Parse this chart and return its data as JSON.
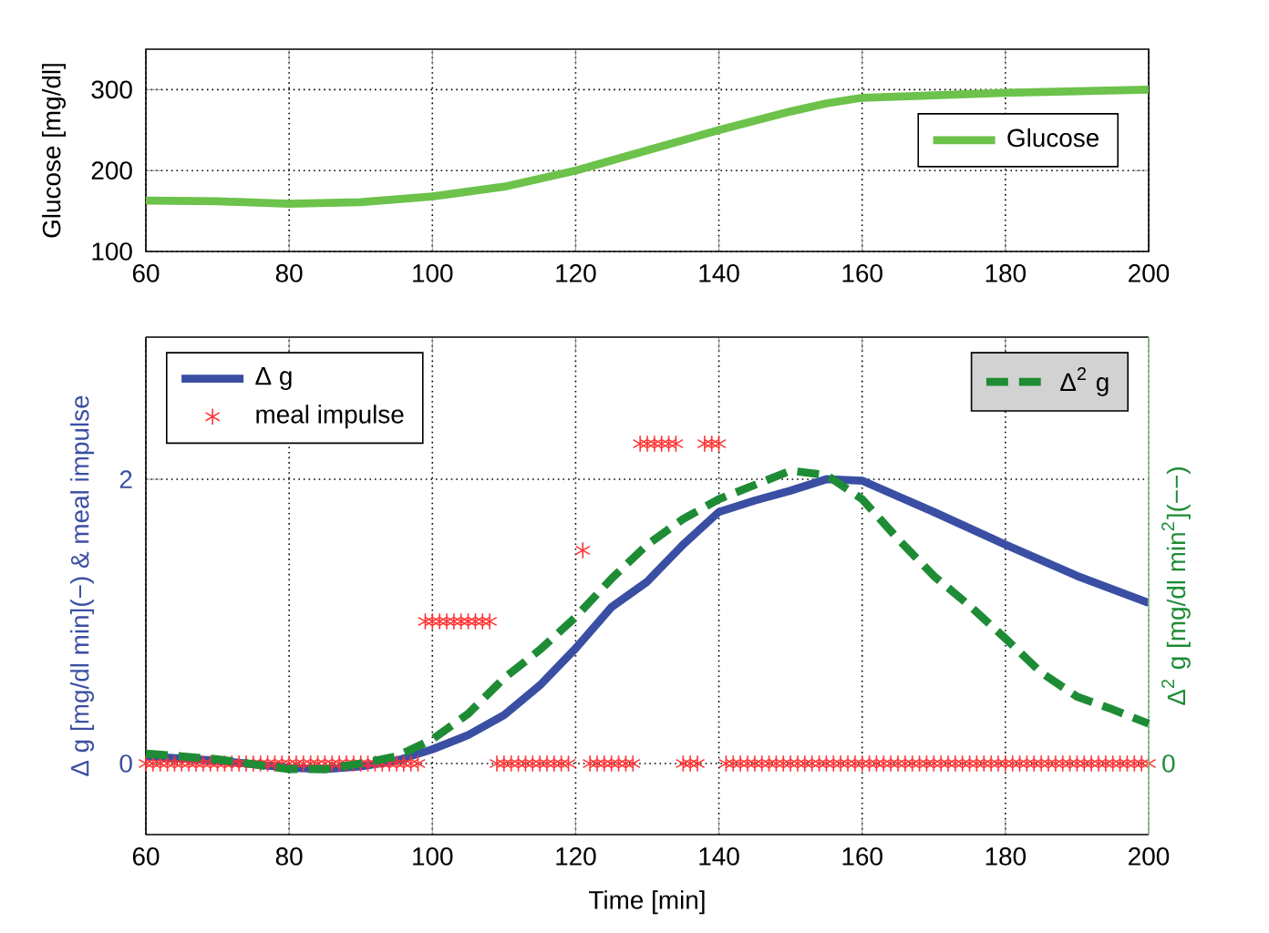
{
  "chart_data": [
    {
      "type": "line",
      "ylabel": "Glucose [mg/dl]",
      "xlim": [
        60,
        200
      ],
      "ylim": [
        100,
        350
      ],
      "xticks": [
        60,
        80,
        100,
        120,
        140,
        160,
        180,
        200
      ],
      "yticks": [
        100,
        200,
        300
      ],
      "grid": true,
      "legend": "right",
      "x": [
        60,
        70,
        80,
        90,
        100,
        110,
        120,
        130,
        140,
        150,
        155,
        160,
        170,
        180,
        190,
        200
      ],
      "series": [
        {
          "name": "Glucose",
          "color": "#6cc24a",
          "values": [
            163,
            162,
            159,
            161,
            168,
            180,
            200,
            225,
            250,
            273,
            283,
            290,
            293,
            296,
            298,
            300
          ]
        }
      ]
    },
    {
      "type": "line",
      "xlabel": "Time [min]",
      "ylabel": "Δ g [mg/dl min](−) & meal impulse",
      "y2label": "Δ$^{2}$ g [mg/dl min$^{2}$](−−)",
      "xlim": [
        60,
        200
      ],
      "ylim": [
        -0.5,
        3
      ],
      "xticks": [
        60,
        80,
        100,
        120,
        140,
        160,
        180,
        200
      ],
      "yticks": [
        0,
        2
      ],
      "annotations": [
        "0"
      ],
      "grid": true,
      "legend": "top left",
      "series": [
        {
          "name": "Δ g",
          "color": "#3a4fa3",
          "x": [
            60,
            70,
            80,
            85,
            90,
            95,
            100,
            105,
            110,
            115,
            120,
            125,
            130,
            135,
            140,
            145,
            150,
            155,
            160,
            165,
            170,
            180,
            190,
            200
          ],
          "values": [
            0.05,
            0.02,
            -0.03,
            -0.04,
            -0.02,
            0.02,
            0.1,
            0.2,
            0.34,
            0.55,
            0.81,
            1.1,
            1.28,
            1.54,
            1.77,
            1.85,
            1.92,
            2.0,
            1.99,
            1.88,
            1.77,
            1.54,
            1.32,
            1.13
          ]
        },
        {
          "name": "meal impulse",
          "type": "scatter",
          "marker": "cross",
          "color": "#ff3333",
          "x": [
            60,
            61,
            62,
            63,
            64,
            65,
            66,
            67,
            68,
            69,
            70,
            71,
            72,
            73,
            74,
            75,
            76,
            77,
            78,
            79,
            80,
            81,
            82,
            83,
            84,
            85,
            86,
            87,
            88,
            89,
            90,
            91,
            92,
            93,
            94,
            95,
            96,
            97,
            98,
            99,
            100,
            101,
            102,
            103,
            104,
            105,
            106,
            107,
            108,
            109,
            110,
            111,
            112,
            113,
            114,
            115,
            116,
            117,
            118,
            119,
            121,
            122,
            123,
            124,
            125,
            126,
            127,
            128,
            129,
            130,
            131,
            132,
            133,
            134,
            135,
            136,
            137,
            138,
            139,
            140,
            141,
            142,
            143,
            144,
            145,
            146,
            147,
            148,
            149,
            150,
            151,
            152,
            153,
            154,
            155,
            156,
            157,
            158,
            159,
            160,
            161,
            162,
            163,
            164,
            165,
            166,
            167,
            168,
            169,
            170,
            171,
            172,
            173,
            174,
            175,
            176,
            177,
            178,
            179,
            180,
            181,
            182,
            183,
            184,
            185,
            186,
            187,
            188,
            189,
            190,
            191,
            192,
            193,
            194,
            195,
            196,
            197,
            198,
            199,
            200
          ],
          "values": [
            0,
            0,
            0,
            0,
            0,
            0,
            0,
            0,
            0,
            0,
            0,
            0,
            0,
            0,
            0,
            0,
            0,
            0,
            0,
            0,
            0,
            0,
            0,
            0,
            0,
            0,
            0,
            0,
            0,
            0,
            0,
            0,
            0,
            0,
            0,
            0,
            0,
            0,
            0,
            1,
            1,
            1,
            1,
            1,
            1,
            1,
            1,
            1,
            1,
            0,
            0,
            0,
            0,
            0,
            0,
            0,
            0,
            0,
            0,
            0,
            1.5,
            0,
            0,
            0,
            0,
            0,
            0,
            0,
            2.25,
            2.25,
            2.25,
            2.25,
            2.25,
            2.25,
            0,
            0,
            0,
            2.25,
            2.25,
            2.25,
            0,
            0,
            0,
            0,
            0,
            0,
            0,
            0,
            0,
            0,
            0,
            0,
            0,
            0,
            0,
            0,
            0,
            0,
            0,
            0,
            0,
            0,
            0,
            0,
            0,
            0,
            0,
            0,
            0,
            0,
            0,
            0,
            0,
            0,
            0,
            0,
            0,
            0,
            0,
            0,
            0,
            0,
            0,
            0,
            0,
            0,
            0,
            0,
            0,
            0,
            0,
            0,
            0,
            0,
            0,
            0,
            0,
            0,
            0,
            0
          ]
        },
        {
          "name": "Δ$^{2}$ g",
          "line_style": "dashed",
          "color": "#1e8c35",
          "x": [
            60,
            70,
            80,
            85,
            90,
            95,
            100,
            105,
            110,
            115,
            120,
            125,
            130,
            135,
            140,
            145,
            150,
            155,
            160,
            165,
            170,
            175,
            180,
            185,
            190,
            195,
            200
          ],
          "values": [
            0.07,
            0.03,
            -0.04,
            -0.04,
            0.0,
            0.05,
            0.17,
            0.35,
            0.6,
            0.8,
            1.03,
            1.3,
            1.54,
            1.72,
            1.86,
            1.96,
            2.06,
            2.03,
            1.86,
            1.58,
            1.32,
            1.11,
            0.88,
            0.64,
            0.47,
            0.38,
            0.28
          ]
        }
      ]
    }
  ]
}
